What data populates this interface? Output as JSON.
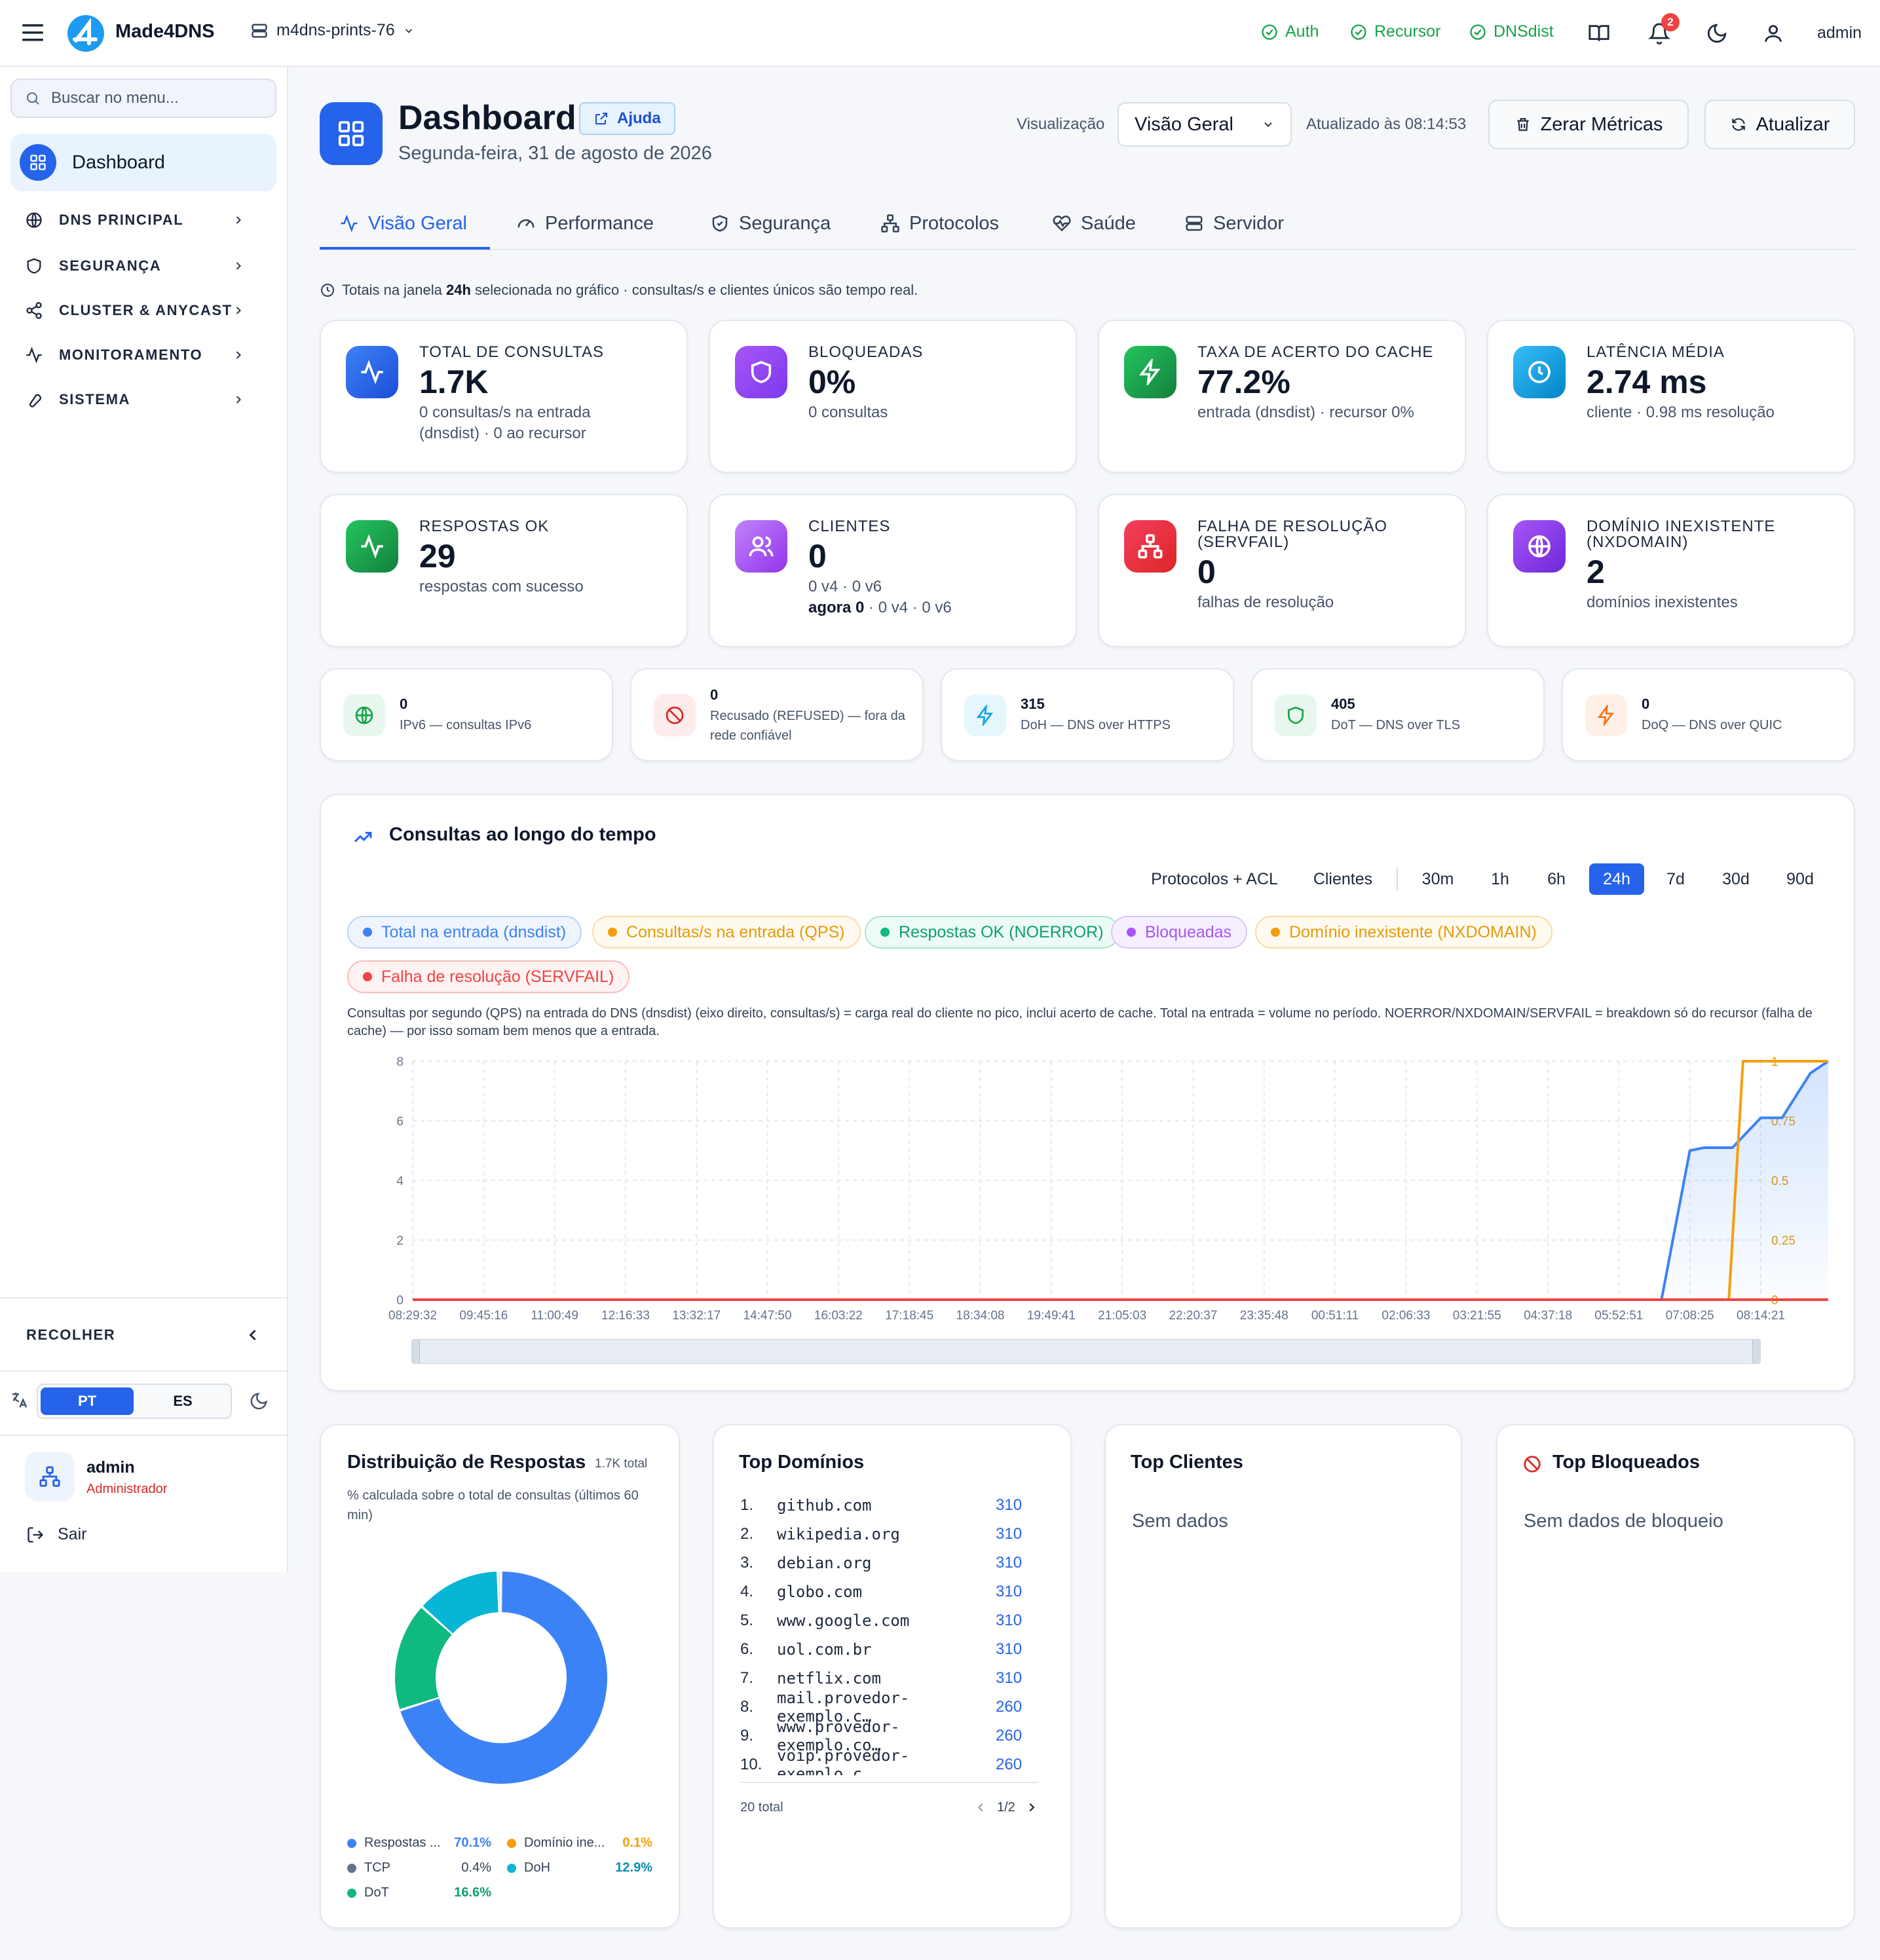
{
  "header": {
    "app_name": "Made4DNS",
    "server_name": "m4dns-prints-76",
    "services": [
      {
        "label": "Auth",
        "color": "#16a34a"
      },
      {
        "label": "Recursor",
        "color": "#16a34a"
      },
      {
        "label": "DNSdist",
        "color": "#16a34a"
      }
    ],
    "notifications_count": "2",
    "user": "admin"
  },
  "sidebar": {
    "search_placeholder": "Buscar no menu...",
    "active_item": "Dashboard",
    "sections": [
      {
        "label": "DNS PRINCIPAL",
        "icon": "globe-icon"
      },
      {
        "label": "SEGURANÇA",
        "icon": "shield-icon"
      },
      {
        "label": "CLUSTER & ANYCAST",
        "icon": "share-icon"
      },
      {
        "label": "MONITORAMENTO",
        "icon": "activity-icon"
      },
      {
        "label": "SISTEMA",
        "icon": "wrench-icon"
      }
    ],
    "collapse_label": "RECOLHER",
    "languages": [
      "PT",
      "ES"
    ],
    "active_language": "PT",
    "user_name": "admin",
    "user_role": "Administrador",
    "logout_label": "Sair"
  },
  "page": {
    "title": "Dashboard",
    "help_label": "Ajuda",
    "date": "Segunda-feira, 31 de agosto de 2026",
    "view_label": "Visualização",
    "view_value": "Visão Geral",
    "updated": "Atualizado às 08:14:53",
    "reset_label": "Zerar Métricas",
    "refresh_label": "Atualizar",
    "tabs": [
      "Visão Geral",
      "Performance",
      "Segurança",
      "Protocolos",
      "Saúde",
      "Servidor"
    ],
    "active_tab": "Visão Geral",
    "notice_pre": "Totais na janela ",
    "notice_bold": "24h",
    "notice_post": " selecionada no gráfico · consultas/s e clientes únicos são tempo real."
  },
  "stats": [
    {
      "label": "TOTAL DE CONSULTAS",
      "value": "1.7K",
      "sub": "0 consultas/s na entrada (dnsdist) · 0 ao recursor",
      "icon": "activity-icon",
      "color": "#2563eb"
    },
    {
      "label": "BLOQUEADAS",
      "value": "0%",
      "sub": "0 consultas",
      "icon": "shield-icon",
      "color": "#7c3aed"
    },
    {
      "label": "TAXA DE ACERTO DO CACHE",
      "value": "77.2%",
      "sub": "entrada (dnsdist) · recursor 0%",
      "icon": "zap-icon",
      "color": "#16a34a"
    },
    {
      "label": "LATÊNCIA MÉDIA",
      "value": "2.74 ms",
      "sub": "cliente · 0.98 ms resolução",
      "icon": "clock-icon",
      "color": "#0ea5e9"
    },
    {
      "label": "RESPOSTAS OK",
      "value": "29",
      "sub": "respostas com sucesso",
      "icon": "activity-icon",
      "color": "#16a34a"
    },
    {
      "label": "CLIENTES",
      "value": "0",
      "sub": "0 v4 · 0 v6",
      "sub2_bold": "agora 0",
      "sub2": " · 0 v4 · 0 v6",
      "icon": "users-icon",
      "color": "#9333ea"
    },
    {
      "label": "FALHA DE RESOLUÇÃO (SERVFAIL)",
      "value": "0",
      "sub": "falhas de resolução",
      "icon": "network-icon",
      "color": "#dc2626"
    },
    {
      "label": "DOMÍNIO INEXISTENTE (NXDOMAIN)",
      "value": "2",
      "sub": "domínios inexistentes",
      "icon": "globe-icon",
      "color": "#7c3aed"
    }
  ],
  "mini_stats": [
    {
      "value": "0",
      "desc": "IPv6 — consultas IPv6",
      "icon": "globe-icon",
      "color": "#16a34a",
      "bg": "#e8f7ee"
    },
    {
      "value": "0",
      "desc": "Recusado (REFUSED) — fora da rede confiável",
      "icon": "ban-icon",
      "color": "#dc2626",
      "bg": "#fdeceb"
    },
    {
      "value": "315",
      "desc": "DoH — DNS over HTTPS",
      "icon": "zap-icon",
      "color": "#0ea5e9",
      "bg": "#e6f6fd"
    },
    {
      "value": "405",
      "desc": "DoT — DNS over TLS",
      "icon": "shield-icon",
      "color": "#16a34a",
      "bg": "#e8f7ee"
    },
    {
      "value": "0",
      "desc": "DoQ — DNS over QUIC",
      "icon": "zap-icon",
      "color": "#f97316",
      "bg": "#fef0e6"
    }
  ],
  "chart": {
    "title": "Consultas ao longo do tempo",
    "filters": [
      "Protocolos + ACL",
      "Clientes"
    ],
    "ranges": [
      "30m",
      "1h",
      "6h",
      "24h",
      "7d",
      "30d",
      "90d"
    ],
    "active_range": "24h",
    "series_pills": [
      {
        "label": "Total na entrada (dnsdist)",
        "color": "#3b82f6",
        "bg": "#eff5ff",
        "border": "#bcd3fb"
      },
      {
        "label": "Consultas/s na entrada (QPS)",
        "color": "#f59e0b",
        "bg": "#fffaf0",
        "border": "#fbdba0"
      },
      {
        "label": "Respostas OK (NOERROR)",
        "color": "#10b981",
        "bg": "#ecfbf4",
        "border": "#a8e8ce"
      },
      {
        "label": "Bloqueadas",
        "color": "#a855f7",
        "bg": "#f6efff",
        "border": "#dcc4f8"
      },
      {
        "label": "Domínio inexistente (NXDOMAIN)",
        "color": "#f59e0b",
        "bg": "#fffaf0",
        "border": "#fbdba0"
      },
      {
        "label": "Falha de resolução (SERVFAIL)",
        "color": "#ef4444",
        "bg": "#fff2f2",
        "border": "#f8bcbc"
      }
    ],
    "note": "Consultas por segundo (QPS) na entrada do DNS (dnsdist) (eixo direito, consultas/s) = carga real do cliente no pico, inclui acerto de cache. Total na entrada = volume no período. NOERROR/NXDOMAIN/SERVFAIL = breakdown só do recursor (falha de cache) — por isso somam bem menos que a entrada."
  },
  "chart_data": {
    "type": "line",
    "x": [
      "08:29:32",
      "09:45:16",
      "11:00:49",
      "12:16:33",
      "13:32:17",
      "14:47:50",
      "16:03:22",
      "17:18:45",
      "18:34:08",
      "19:49:41",
      "21:05:03",
      "22:20:37",
      "23:35:48",
      "00:51:11",
      "02:06:33",
      "03:21:55",
      "04:37:18",
      "05:52:51",
      "07:08:25",
      "08:14:21"
    ],
    "ylim": [
      0,
      8
    ],
    "yticks": [
      "0",
      "2",
      "4",
      "6",
      "8"
    ],
    "y2lim": [
      0,
      1
    ],
    "y2ticks": [
      "0",
      "0.25",
      "0.5",
      "0.75",
      "1"
    ],
    "grid": true,
    "series": [
      {
        "name": "Total na entrada (dnsdist)",
        "axis": "left",
        "color": "#3b82f6",
        "points": [
          [
            0,
            0
          ],
          [
            17.6,
            0
          ],
          [
            18.0,
            5.0
          ],
          [
            18.2,
            5.1
          ],
          [
            18.6,
            5.1
          ],
          [
            19.0,
            6.1
          ],
          [
            19.3,
            6.1
          ],
          [
            19.7,
            7.6
          ],
          [
            19.95,
            8.0
          ]
        ]
      },
      {
        "name": "Consultas/s na entrada (QPS)",
        "axis": "right",
        "color": "#f59e0b",
        "points": [
          [
            0,
            0
          ],
          [
            18.55,
            0
          ],
          [
            18.75,
            1
          ],
          [
            19.95,
            1
          ]
        ]
      },
      {
        "name": "Falha de resolução (SERVFAIL)",
        "axis": "left",
        "color": "#ef4444",
        "points": [
          [
            0,
            0
          ],
          [
            19.95,
            0
          ]
        ]
      }
    ]
  },
  "response_dist": {
    "title": "Distribuição de Respostas",
    "total": "1.7K total",
    "subtitle": "% calculada sobre o total de consultas (últimos 60 min)",
    "slices": [
      {
        "label": "Respostas ...",
        "value": 70.1,
        "pct": "70.1%",
        "color": "#3b82f6"
      },
      {
        "label": "Domínio ine...",
        "value": 0.1,
        "pct": "0.1%",
        "color": "#f59e0b"
      },
      {
        "label": "TCP",
        "value": 0.4,
        "pct": "0.4%",
        "color": "#64748b"
      },
      {
        "label": "DoH",
        "value": 12.9,
        "pct": "12.9%",
        "color": "#06b6d4"
      },
      {
        "label": "DoT",
        "value": 16.6,
        "pct": "16.6%",
        "color": "#10b981"
      }
    ]
  },
  "top_domains": {
    "title": "Top Domínios",
    "items": [
      {
        "idx": "1.",
        "name": "github.com",
        "count": "310"
      },
      {
        "idx": "2.",
        "name": "wikipedia.org",
        "count": "310"
      },
      {
        "idx": "3.",
        "name": "debian.org",
        "count": "310"
      },
      {
        "idx": "4.",
        "name": "globo.com",
        "count": "310"
      },
      {
        "idx": "5.",
        "name": "www.google.com",
        "count": "310"
      },
      {
        "idx": "6.",
        "name": "uol.com.br",
        "count": "310"
      },
      {
        "idx": "7.",
        "name": "netflix.com",
        "count": "310"
      },
      {
        "idx": "8.",
        "name": "mail.provedor-exemplo.c…",
        "count": "260"
      },
      {
        "idx": "9.",
        "name": "www.provedor-exemplo.co…",
        "count": "260"
      },
      {
        "idx": "10.",
        "name": "voip.provedor-exemplo.c…",
        "count": "260"
      }
    ],
    "total": "20 total",
    "page": "1/2"
  },
  "top_clients": {
    "title": "Top Clientes",
    "empty": "Sem dados"
  },
  "top_blocked": {
    "title": "Top Bloqueados",
    "empty": "Sem dados de bloqueio"
  }
}
